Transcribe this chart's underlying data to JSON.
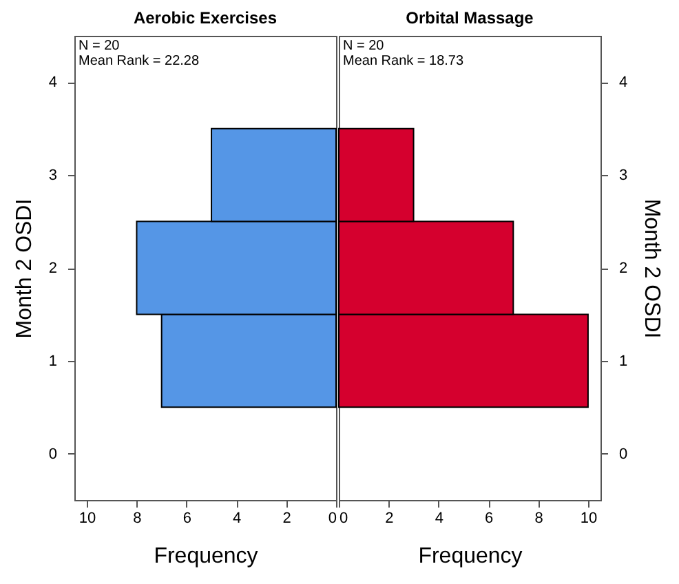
{
  "chart_data": [
    {
      "type": "histogram",
      "orientation": "horizontal",
      "title": "Aerobic Exercises",
      "xlabel": "Frequency",
      "ylabel": "Month 2 OSDI",
      "bins": [
        0.5,
        1.5,
        2.5,
        3.5
      ],
      "values": [
        7,
        8,
        5
      ],
      "color": "#5596e6",
      "xlim": [
        10.5,
        0
      ],
      "xticks": [
        10,
        8,
        6,
        4,
        2,
        0
      ],
      "ylim": [
        -0.5,
        4.5
      ],
      "yticks": [
        0,
        1,
        2,
        3,
        4
      ],
      "annotations": [
        "N = 20",
        "Mean Rank = 22.28"
      ]
    },
    {
      "type": "histogram",
      "orientation": "horizontal",
      "title": "Orbital Massage",
      "xlabel": "Frequency",
      "ylabel": "Month 2 OSDI",
      "bins": [
        0.5,
        1.5,
        2.5,
        3.5
      ],
      "values": [
        10,
        7,
        3
      ],
      "color": "#d5002e",
      "xlim": [
        0,
        10.5
      ],
      "xticks": [
        0,
        2,
        4,
        6,
        8,
        10
      ],
      "ylim": [
        -0.5,
        4.5
      ],
      "yticks": [
        0,
        1,
        2,
        3,
        4
      ],
      "annotations": [
        "N = 20",
        "Mean Rank = 18.73"
      ]
    }
  ]
}
